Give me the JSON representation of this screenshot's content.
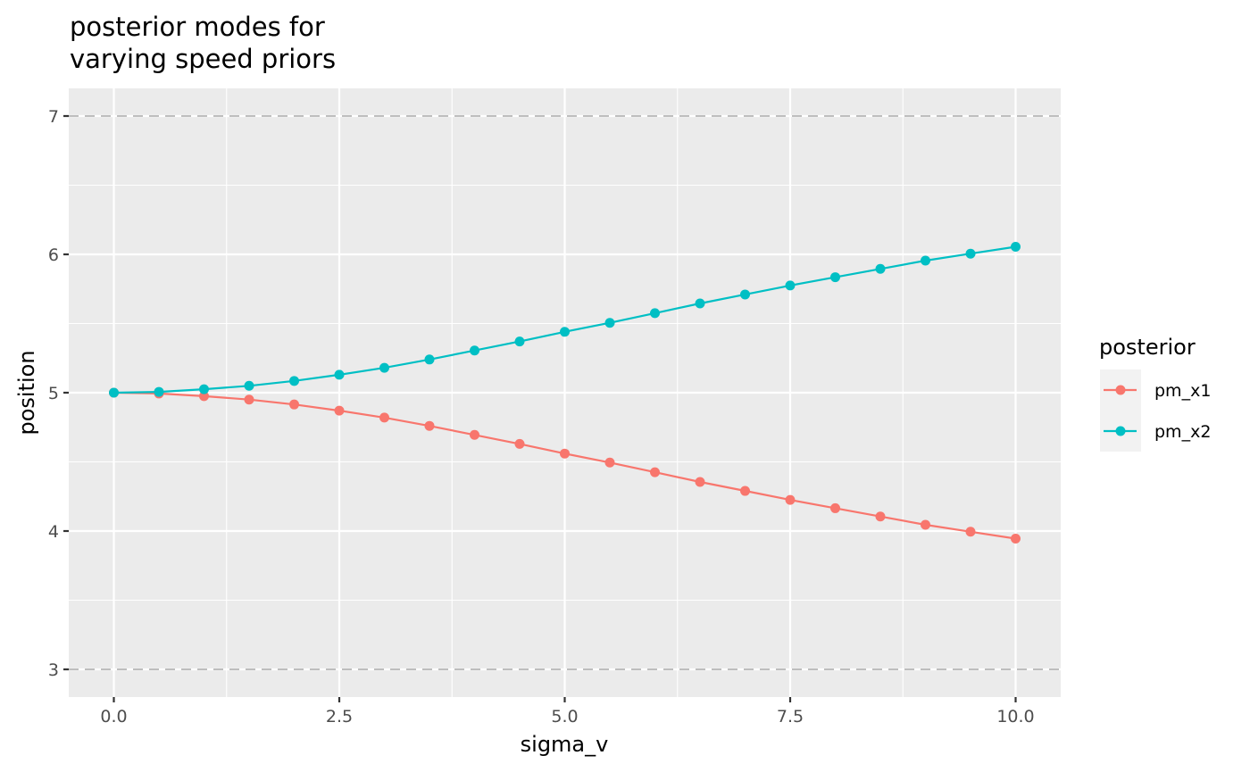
{
  "chart_data": {
    "type": "line",
    "title": "posterior modes for\nvarying speed priors",
    "title_lines": [
      "posterior modes for",
      "varying speed priors"
    ],
    "xlabel": "sigma_v",
    "ylabel": "position",
    "xlim": [
      -0.5,
      10.5
    ],
    "ylim": [
      2.8,
      7.2
    ],
    "x_ticks": [
      0.0,
      2.5,
      5.0,
      7.5,
      10.0
    ],
    "x_tick_labels": [
      "0.0",
      "2.5",
      "5.0",
      "7.5",
      "10.0"
    ],
    "y_ticks": [
      3,
      4,
      5,
      6,
      7
    ],
    "y_tick_labels": [
      "3",
      "4",
      "5",
      "6",
      "7"
    ],
    "grid": true,
    "reference_lines": [
      {
        "y": 3,
        "style": "dashed",
        "color": "#bebebe"
      },
      {
        "y": 7,
        "style": "dashed",
        "color": "#bebebe"
      }
    ],
    "legend": {
      "title": "posterior",
      "position": "right",
      "entries": [
        "pm_x1",
        "pm_x2"
      ]
    },
    "x": [
      0,
      0.5,
      1,
      1.5,
      2,
      2.5,
      3,
      3.5,
      4,
      4.5,
      5,
      5.5,
      6,
      6.5,
      7,
      7.5,
      8,
      8.5,
      9,
      9.5,
      10
    ],
    "series": [
      {
        "name": "pm_x1",
        "color": "#F8766D",
        "values": [
          5.0,
          4.994,
          4.975,
          4.95,
          4.915,
          4.87,
          4.82,
          4.76,
          4.695,
          4.63,
          4.56,
          4.495,
          4.425,
          4.355,
          4.29,
          4.225,
          4.165,
          4.105,
          4.045,
          3.995,
          3.945
        ]
      },
      {
        "name": "pm_x2",
        "color": "#00BFC4",
        "values": [
          5.0,
          5.006,
          5.025,
          5.05,
          5.085,
          5.13,
          5.18,
          5.24,
          5.305,
          5.37,
          5.44,
          5.505,
          5.575,
          5.645,
          5.71,
          5.775,
          5.835,
          5.895,
          5.955,
          6.005,
          6.055
        ]
      }
    ]
  }
}
